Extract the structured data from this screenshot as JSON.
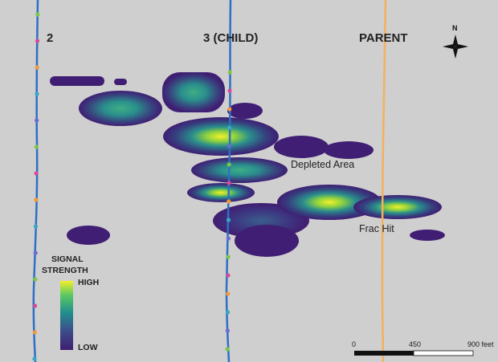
{
  "colors": {
    "background": "#cfcfcf",
    "well_line": "#2f6fc4",
    "parent_line": "#f4b15a",
    "text": "#222222",
    "heat_low": "#3f1e73",
    "heat_mid": "#2a8f8c",
    "heat_high": "#f4ef2a"
  },
  "wells": {
    "well_2": {
      "label": "2"
    },
    "well_3": {
      "label": "3 (CHILD)"
    },
    "parent": {
      "label": "PARENT"
    }
  },
  "annotations": {
    "depleted_area": "Depleted Area",
    "frac_hit": "Frac Hit"
  },
  "compass": {
    "label": "N",
    "icon": "north-arrow-icon"
  },
  "legend": {
    "title_line1": "SIGNAL",
    "title_line2": "STRENGTH",
    "high": "HIGH",
    "low": "LOW"
  },
  "scale_bar": {
    "tick_0": "0",
    "tick_1": "450",
    "tick_2": "900 feet"
  }
}
